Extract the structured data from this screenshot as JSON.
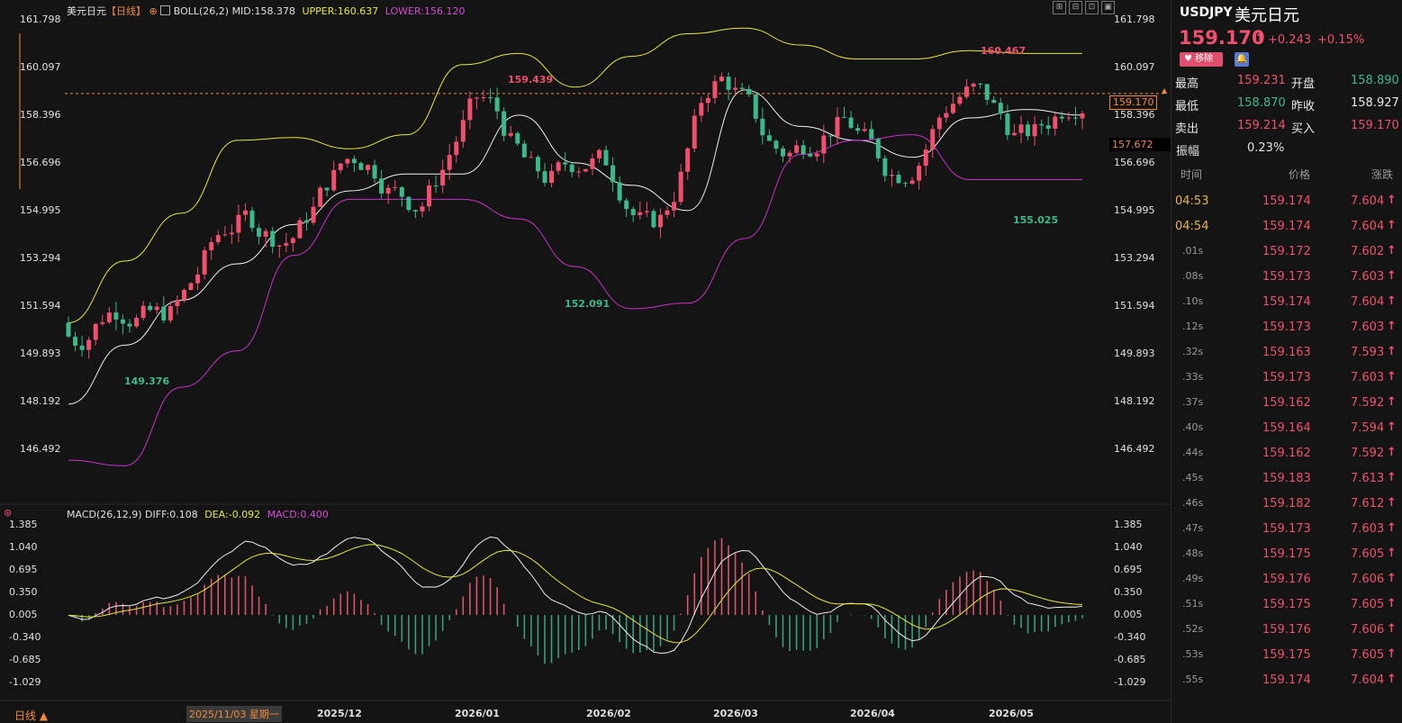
{
  "header": {
    "symbol": "美元日元",
    "period_tag": "【日线】",
    "indicator": "BOLL(26,2)",
    "mid": "MID:158.378",
    "upper": "UPPER:160.637",
    "lower": "LOWER:156.120"
  },
  "macd_header": {
    "name": "MACD(26,12,9)",
    "diff": "DIFF:0.108",
    "dea": "DEA:-0.092",
    "macd": "MACD:0.400"
  },
  "price_axis": [
    "161.798",
    "160.097",
    "158.396",
    "156.696",
    "154.995",
    "153.294",
    "151.594",
    "149.893",
    "148.192",
    "146.492"
  ],
  "macd_axis": [
    "1.385",
    "1.040",
    "0.695",
    "0.350",
    "0.005",
    "-0.340",
    "-0.685",
    "-1.029"
  ],
  "current_price_tag": "159.170",
  "ref_price_tag": "157.672",
  "annotations": {
    "high1": "159.439",
    "high2": "160.467",
    "low1": "149.376",
    "low2": "152.091",
    "low3": "155.025"
  },
  "x_axis": {
    "crosshair_date": "2025/11/03 星期一",
    "months": [
      "2025/12",
      "2026/01",
      "2026/02",
      "2026/03",
      "2026/04",
      "2026/05"
    ]
  },
  "period_button": "日线 ▲",
  "colors": {
    "up": "#f0506e",
    "down": "#3cb98a",
    "upper": "#e8e83a",
    "mid": "#f0f0f0",
    "lower": "#c832c8",
    "dea": "#e8e83a",
    "diff": "#f0f0f0",
    "hist_up": "#d8556a",
    "hist_down": "#3a9e7c"
  },
  "quote": {
    "code": "USDJPY",
    "name": "美元日元",
    "price": "159.170",
    "arrow": "↑",
    "change": "+0.243",
    "change_pct": "+0.15%",
    "remove_button": "移除",
    "stats": [
      {
        "label": "最高",
        "value": "159.231",
        "label2": "开盘",
        "value2": "158.890"
      },
      {
        "label": "最低",
        "value": "158.870",
        "label2": "昨收",
        "value2": "158.927"
      },
      {
        "label": "卖出",
        "value": "159.214",
        "label2": "买入",
        "value2": "159.170"
      }
    ],
    "amplitude_label": "振幅",
    "amplitude_value": "0.23%"
  },
  "ticks_header": {
    "time": "时间",
    "price": "价格",
    "change": "涨跌"
  },
  "ticks": [
    {
      "t": "04:53",
      "p": "159.174",
      "c": "7.604"
    },
    {
      "t": "04:54",
      "p": "159.174",
      "c": "7.604"
    },
    {
      "t": ".01s",
      "p": "159.172",
      "c": "7.602"
    },
    {
      "t": ".08s",
      "p": "159.173",
      "c": "7.603"
    },
    {
      "t": ".10s",
      "p": "159.174",
      "c": "7.604"
    },
    {
      "t": ".12s",
      "p": "159.173",
      "c": "7.603"
    },
    {
      "t": ".32s",
      "p": "159.163",
      "c": "7.593"
    },
    {
      "t": ".33s",
      "p": "159.173",
      "c": "7.603"
    },
    {
      "t": ".37s",
      "p": "159.162",
      "c": "7.592"
    },
    {
      "t": ".40s",
      "p": "159.164",
      "c": "7.594"
    },
    {
      "t": ".44s",
      "p": "159.162",
      "c": "7.592"
    },
    {
      "t": ".45s",
      "p": "159.183",
      "c": "7.613"
    },
    {
      "t": ".46s",
      "p": "159.182",
      "c": "7.612"
    },
    {
      "t": ".47s",
      "p": "159.173",
      "c": "7.603"
    },
    {
      "t": ".48s",
      "p": "159.175",
      "c": "7.605"
    },
    {
      "t": ".49s",
      "p": "159.176",
      "c": "7.606"
    },
    {
      "t": ".51s",
      "p": "159.175",
      "c": "7.605"
    },
    {
      "t": ".52s",
      "p": "159.176",
      "c": "7.606"
    },
    {
      "t": ".53s",
      "p": "159.175",
      "c": "7.605"
    },
    {
      "t": ".55s",
      "p": "159.174",
      "c": "7.604"
    }
  ],
  "tick_arrow": "↑",
  "toolbar_icons": [
    "zoom-in-icon",
    "zoom-out-icon",
    "fit-icon",
    "settings-icon"
  ],
  "chart_data": {
    "type": "candlestick",
    "series": [
      {
        "name": "MID",
        "values": [
          148.1,
          150.2,
          151.8,
          153.1,
          154.5,
          155.7,
          156.3,
          156.3,
          158.4,
          156.7,
          155.9,
          155.0,
          159.3,
          158.0,
          157.5,
          156.9,
          158.3,
          158.6,
          158.4
        ]
      },
      {
        "name": "UPPER",
        "values": [
          151.0,
          153.2,
          154.9,
          157.5,
          157.6,
          157.2,
          157.7,
          160.2,
          160.6,
          159.4,
          160.5,
          161.3,
          161.5,
          160.9,
          160.4,
          160.4,
          160.7,
          160.6,
          160.6
        ]
      },
      {
        "name": "LOWER",
        "values": [
          146.1,
          145.9,
          148.7,
          150.0,
          153.4,
          155.4,
          155.4,
          155.4,
          154.7,
          153.0,
          151.5,
          151.7,
          154.0,
          157.0,
          157.5,
          157.7,
          156.1,
          156.1,
          156.1
        ]
      }
    ],
    "ylim": [
      146.0,
      162.0
    ]
  }
}
